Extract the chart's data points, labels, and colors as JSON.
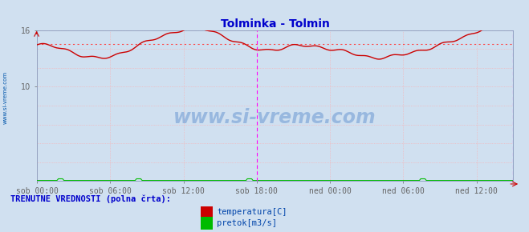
{
  "title": "Tolminka - Tolmin",
  "title_color": "#0000cc",
  "bg_color": "#d0e0f0",
  "plot_bg_color": "#d0e0f0",
  "grid_color": "#ffaaaa",
  "x_labels": [
    "sob 00:00",
    "sob 06:00",
    "sob 12:00",
    "sob 18:00",
    "ned 00:00",
    "ned 06:00",
    "ned 12:00"
  ],
  "tick_hours": [
    0,
    6,
    12,
    18,
    24,
    30,
    36
  ],
  "total_hours": 39.0,
  "ylim": [
    0,
    16
  ],
  "yticks_show": [
    10,
    16
  ],
  "temp_color": "#cc0000",
  "flow_color": "#00bb00",
  "avg_temp": 14.5,
  "avg_line_color": "#ff4444",
  "current_hour": 18.0,
  "current_line_color": "#ff00ff",
  "end_line_color": "#ff00ff",
  "watermark": "www.si-vreme.com",
  "watermark_color": "#5588cc",
  "watermark_alpha": 0.45,
  "sidebar_text": "www.si-vreme.com",
  "sidebar_color": "#0055aa",
  "legend_label": "TRENUTNE VREDNOSTI (polna črta):",
  "legend_label_color": "#0000cc",
  "legend_temp_label": "temperatura[C]",
  "legend_flow_label": "pretok[m3/s]",
  "legend_color": "#0044aa",
  "arrow_color": "#cc0000",
  "spine_color": "#8888cc",
  "tick_label_color": "#333333"
}
